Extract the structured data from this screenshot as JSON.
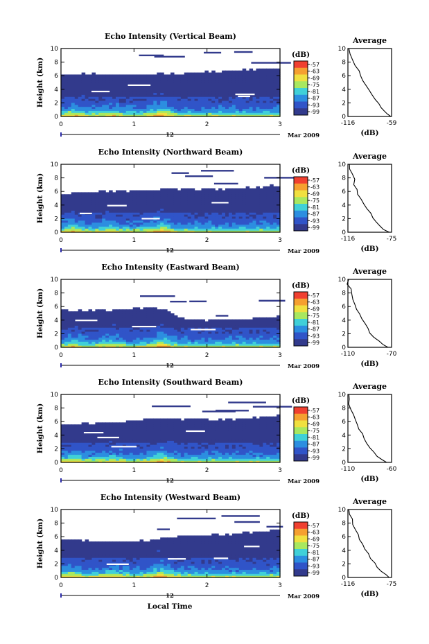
{
  "figure": {
    "x_axis_label": "Local Time",
    "date_label": "Mar 2009",
    "day_label": "12",
    "colorbar_unit": "(dB)",
    "colorbar_ticks": [
      "-57",
      "-63",
      "-69",
      "-75",
      "-81",
      "-87",
      "-93",
      "-99"
    ],
    "colorbar_colors": [
      "#f04030",
      "#f5a030",
      "#f0e040",
      "#a8e860",
      "#40d0d8",
      "#2c8ee0",
      "#3054c8",
      "#323a8c"
    ],
    "profile_title": "Average",
    "profile_xlabel": "(dB)"
  },
  "chart_data": [
    {
      "type": "heatmap",
      "title": "Echo Intensity (Vertical Beam)",
      "ylabel": "Height (km)",
      "xlim": [
        0,
        3
      ],
      "ylim": [
        0,
        10
      ],
      "x_ticks": [
        "0",
        "1",
        "2",
        "3"
      ],
      "y_ticks": [
        "0",
        "2",
        "4",
        "6",
        "8",
        "10"
      ],
      "echo_top_km": [
        6.3,
        6.3,
        6.2,
        6.2,
        6.4,
        6.6,
        6.9,
        7.1
      ],
      "profile": {
        "type": "line",
        "xlim": [
          -116,
          -59
        ],
        "x_ticks": [
          "-116",
          "-59"
        ],
        "ylim": [
          0,
          10
        ],
        "x": [
          -115,
          -114,
          -111,
          -106,
          -102,
          -99,
          -96,
          -92,
          -88,
          -84,
          -80,
          -76,
          -72,
          -68,
          -65,
          -60
        ],
        "y": [
          10,
          9.2,
          8.4,
          7.5,
          6.7,
          6,
          5.3,
          4.6,
          3.9,
          3.2,
          2.5,
          1.9,
          1.3,
          0.8,
          0.4,
          0
        ]
      }
    },
    {
      "type": "heatmap",
      "title": "Echo Intensity (Northward Beam)",
      "ylabel": "Height (km)",
      "xlim": [
        0,
        3
      ],
      "ylim": [
        0,
        10
      ],
      "x_ticks": [
        "0",
        "1",
        "2",
        "3"
      ],
      "y_ticks": [
        "0",
        "2",
        "4",
        "6",
        "8",
        "10"
      ],
      "echo_top_km": [
        5.6,
        6.0,
        6.1,
        6.3,
        6.4,
        6.3,
        6.6,
        6.9
      ],
      "profile": {
        "type": "line",
        "xlim": [
          -116,
          -75
        ],
        "x_ticks": [
          "-116",
          "-75"
        ],
        "ylim": [
          0,
          10
        ],
        "x": [
          -115,
          -114,
          -112,
          -110,
          -111,
          -108,
          -106,
          -104,
          -101,
          -98,
          -95,
          -92,
          -89,
          -86,
          -82,
          -77
        ],
        "y": [
          10,
          9.3,
          8.6,
          7.8,
          7.0,
          6.3,
          5.6,
          4.9,
          4.2,
          3.5,
          2.8,
          2.1,
          1.5,
          0.9,
          0.4,
          0
        ]
      }
    },
    {
      "type": "heatmap",
      "title": "Echo Intensity (Eastward Beam)",
      "ylabel": "Height (km)",
      "xlim": [
        0,
        3
      ],
      "ylim": [
        0,
        10
      ],
      "x_ticks": [
        "0",
        "1",
        "2",
        "3"
      ],
      "y_ticks": [
        "0",
        "2",
        "4",
        "6",
        "8",
        "10"
      ],
      "echo_top_km": [
        5.5,
        5.4,
        5.6,
        5.9,
        4.2,
        4.0,
        4.3,
        4.6
      ],
      "profile": {
        "type": "line",
        "xlim": [
          -110,
          -70
        ],
        "x_ticks": [
          "-110",
          "-70"
        ],
        "ylim": [
          0,
          10
        ],
        "x": [
          -109,
          -110,
          -108,
          -107,
          -106,
          -104,
          -102,
          -100,
          -97,
          -95,
          -92,
          -89,
          -86,
          -82,
          -78,
          -74
        ],
        "y": [
          10,
          9.3,
          8.6,
          7.8,
          7.0,
          6.3,
          5.6,
          4.9,
          4.2,
          3.5,
          2.8,
          2.1,
          1.5,
          0.9,
          0.4,
          0
        ]
      }
    },
    {
      "type": "heatmap",
      "title": "Echo Intensity (Southward Beam)",
      "ylabel": "Height (km)",
      "xlim": [
        0,
        3
      ],
      "ylim": [
        0,
        10
      ],
      "x_ticks": [
        "0",
        "1",
        "2",
        "3"
      ],
      "y_ticks": [
        "0",
        "2",
        "4",
        "6",
        "8",
        "10"
      ],
      "echo_top_km": [
        5.6,
        5.8,
        6.0,
        6.5,
        6.4,
        6.3,
        6.5,
        6.9
      ],
      "profile": {
        "type": "line",
        "xlim": [
          -110,
          -60
        ],
        "x_ticks": [
          "-110",
          "-60"
        ],
        "ylim": [
          0,
          10
        ],
        "x": [
          -109,
          -108,
          -110,
          -106,
          -104,
          -102,
          -100,
          -97,
          -94,
          -91,
          -88,
          -84,
          -80,
          -76,
          -71,
          -65
        ],
        "y": [
          10,
          9.3,
          8.6,
          7.8,
          7.0,
          6.3,
          5.6,
          4.9,
          4.2,
          3.5,
          2.8,
          2.1,
          1.5,
          0.9,
          0.4,
          0
        ]
      }
    },
    {
      "type": "heatmap",
      "title": "Echo Intensity (Westward Beam)",
      "ylabel": "Height (km)",
      "xlim": [
        0,
        3
      ],
      "ylim": [
        0,
        10
      ],
      "x_ticks": [
        "0",
        "1",
        "2",
        "3"
      ],
      "y_ticks": [
        "0",
        "2",
        "4",
        "6",
        "8",
        "10"
      ],
      "echo_top_km": [
        5.7,
        5.4,
        5.2,
        5.6,
        6.2,
        6.3,
        6.6,
        7.0
      ],
      "profile": {
        "type": "line",
        "xlim": [
          -116,
          -75
        ],
        "x_ticks": [
          "-116",
          "-75"
        ],
        "ylim": [
          0,
          10
        ],
        "x": [
          -115,
          -114,
          -112,
          -111,
          -109,
          -107,
          -105,
          -103,
          -100,
          -97,
          -94,
          -91,
          -88,
          -85,
          -81,
          -77
        ],
        "y": [
          10,
          9.3,
          8.6,
          7.8,
          7.0,
          6.3,
          5.6,
          4.9,
          4.2,
          3.5,
          2.8,
          2.1,
          1.5,
          0.9,
          0.4,
          0
        ]
      }
    }
  ]
}
